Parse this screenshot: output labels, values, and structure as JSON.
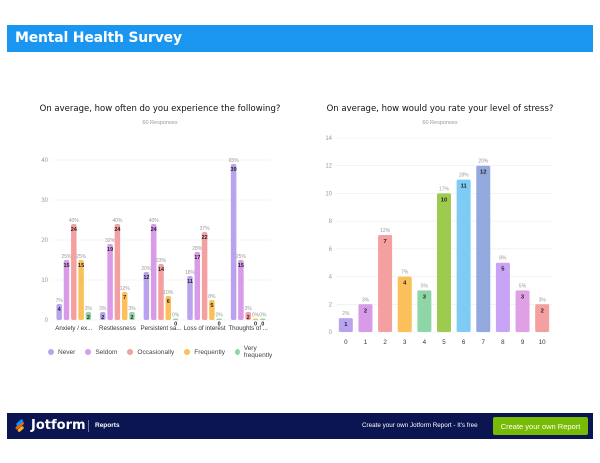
{
  "header": {
    "title": "Mental Health Survey"
  },
  "footer": {
    "brand": "Jotform",
    "section": "Reports",
    "promo_text": "Create your own Jotform Report - It's free",
    "cta_label": "Create your own Report"
  },
  "colors": {
    "header_bg": "#1a96f0",
    "footer_bg": "#0a1551",
    "cta_bg": "#78bb07"
  },
  "chart_data": [
    {
      "type": "bar",
      "title": "On average, how often do you experience the following?",
      "subtitle": "60 Responses",
      "xlabel": "",
      "ylabel": "",
      "ylim": [
        0,
        45
      ],
      "yticks": [
        0,
        10,
        20,
        30,
        40
      ],
      "grid": true,
      "legend_position": "bottom",
      "categories": [
        "Anxiety / ex...",
        "Restlessness",
        "Persistent sa...",
        "Loss of interest",
        "Thoughts of ..."
      ],
      "series": [
        {
          "name": "Never",
          "color": "#b9a3ee",
          "values": [
            4,
            2,
            12,
            11,
            39
          ],
          "percents": [
            "7%",
            "3%",
            "20%",
            "18%",
            "65%"
          ]
        },
        {
          "name": "Seldom",
          "color": "#d79be8",
          "values": [
            15,
            19,
            24,
            17,
            15
          ],
          "percents": [
            "25%",
            "32%",
            "40%",
            "28%",
            "25%"
          ]
        },
        {
          "name": "Occasionally",
          "color": "#f5a0a0",
          "values": [
            24,
            24,
            14,
            22,
            2
          ],
          "percents": [
            "40%",
            "40%",
            "23%",
            "37%",
            "3%"
          ]
        },
        {
          "name": "Frequently",
          "color": "#fbc05a",
          "values": [
            15,
            7,
            6,
            5,
            0
          ],
          "percents": [
            "25%",
            "12%",
            "10%",
            "8%",
            "0%"
          ]
        },
        {
          "name": "Very frequently",
          "color": "#8fd6a6",
          "values": [
            2,
            2,
            0,
            0,
            0
          ],
          "percents": [
            "3%",
            "3%",
            "0%",
            "0%",
            "0%"
          ]
        }
      ]
    },
    {
      "type": "bar",
      "title": "On average, how would you rate your level of stress?",
      "subtitle": "60 Responses",
      "xlabel": "",
      "ylabel": "",
      "ylim": [
        0,
        14
      ],
      "yticks": [
        0,
        2,
        4,
        6,
        8,
        10,
        12,
        14
      ],
      "grid": true,
      "categories": [
        "0",
        "1",
        "2",
        "3",
        "4",
        "5",
        "6",
        "7",
        "8",
        "9",
        "10"
      ],
      "values": [
        1,
        2,
        7,
        4,
        3,
        10,
        11,
        12,
        5,
        3,
        2
      ],
      "percents": [
        "2%",
        "3%",
        "12%",
        "7%",
        "5%",
        "17%",
        "18%",
        "20%",
        "8%",
        "5%",
        "3%"
      ],
      "colors": [
        "#b9a3ee",
        "#d79be8",
        "#f5a0a0",
        "#fbc05a",
        "#8fd6a6",
        "#9ccb4f",
        "#7ecbf5",
        "#93a9de",
        "#c9a3f5",
        "#dfa0e6",
        "#f5a0a0"
      ]
    }
  ]
}
